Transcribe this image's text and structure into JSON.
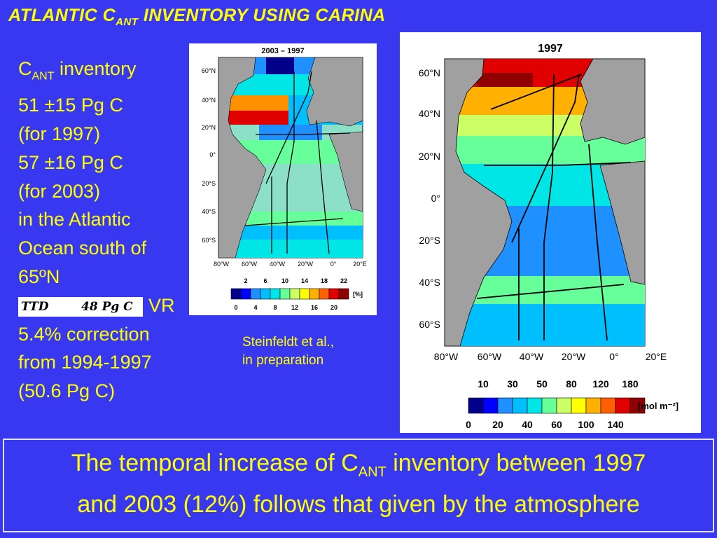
{
  "title": {
    "prefix": "ATLANTIC C",
    "sub": "ANT",
    "suffix": " INVENTORY USING CARINA"
  },
  "left": {
    "l1_prefix": "C",
    "l1_sub": "ANT",
    "l1_suffix": " inventory",
    "l2": "51 ±15 Pg C",
    "l3": "(for 1997)",
    "l4": "57 ±16 Pg C",
    "l5": "(for 2003)",
    "l6": "in the Atlantic",
    "l7": "Ocean south of",
    "l8": "65ºN",
    "ttd_a": "TTD",
    "ttd_b": "48 Pg C",
    "vr": "VR",
    "l10": "5.4% correction",
    "l11": "from 1994-1997",
    "l12": "(50.6 Pg C)"
  },
  "map_small": {
    "title": "2003 – 1997",
    "lat_labels": [
      "60°N",
      "40°N",
      "20°N",
      "0°",
      "20°S",
      "40°S",
      "60°S"
    ],
    "lon_labels": [
      "80°W",
      "60°W",
      "40°W",
      "20°W",
      "0°",
      "20°E"
    ],
    "cbar_top": [
      "2",
      "6",
      "10",
      "14",
      "18",
      "22"
    ],
    "cbar_bottom": [
      "0",
      "4",
      "8",
      "12",
      "16",
      "20"
    ],
    "unit": "[%]",
    "colors": [
      "#00008b",
      "#0000ff",
      "#1e90ff",
      "#00bfff",
      "#00e5e5",
      "#66ff99",
      "#ccff66",
      "#ffff00",
      "#ffb000",
      "#ff6000",
      "#e00000",
      "#900000"
    ]
  },
  "map_large": {
    "title": "1997",
    "lat_labels": [
      "60°N",
      "40°N",
      "20°N",
      "0°",
      "20°S",
      "40°S",
      "60°S"
    ],
    "lon_labels": [
      "80°W",
      "60°W",
      "40°W",
      "20°W",
      "0°",
      "20°E"
    ],
    "cbar_top": [
      "10",
      "30",
      "50",
      "80",
      "120",
      "180"
    ],
    "cbar_bottom": [
      "0",
      "20",
      "40",
      "60",
      "100",
      "140"
    ],
    "unit": "[mol m⁻²]",
    "colors": [
      "#00008b",
      "#0000ff",
      "#1e90ff",
      "#00bfff",
      "#00e5e5",
      "#66ff99",
      "#ccff66",
      "#ffff00",
      "#ffb000",
      "#ff6000",
      "#e00000",
      "#900000"
    ]
  },
  "credit": {
    "line1": "Steinfeldt et al.,",
    "line2": "in preparation"
  },
  "conclusion": {
    "part1": "The temporal increase of C",
    "sub": "ANT",
    "part2": " inventory between 1997",
    "line2": "and 2003 (12%) follows that given by the atmosphere"
  }
}
